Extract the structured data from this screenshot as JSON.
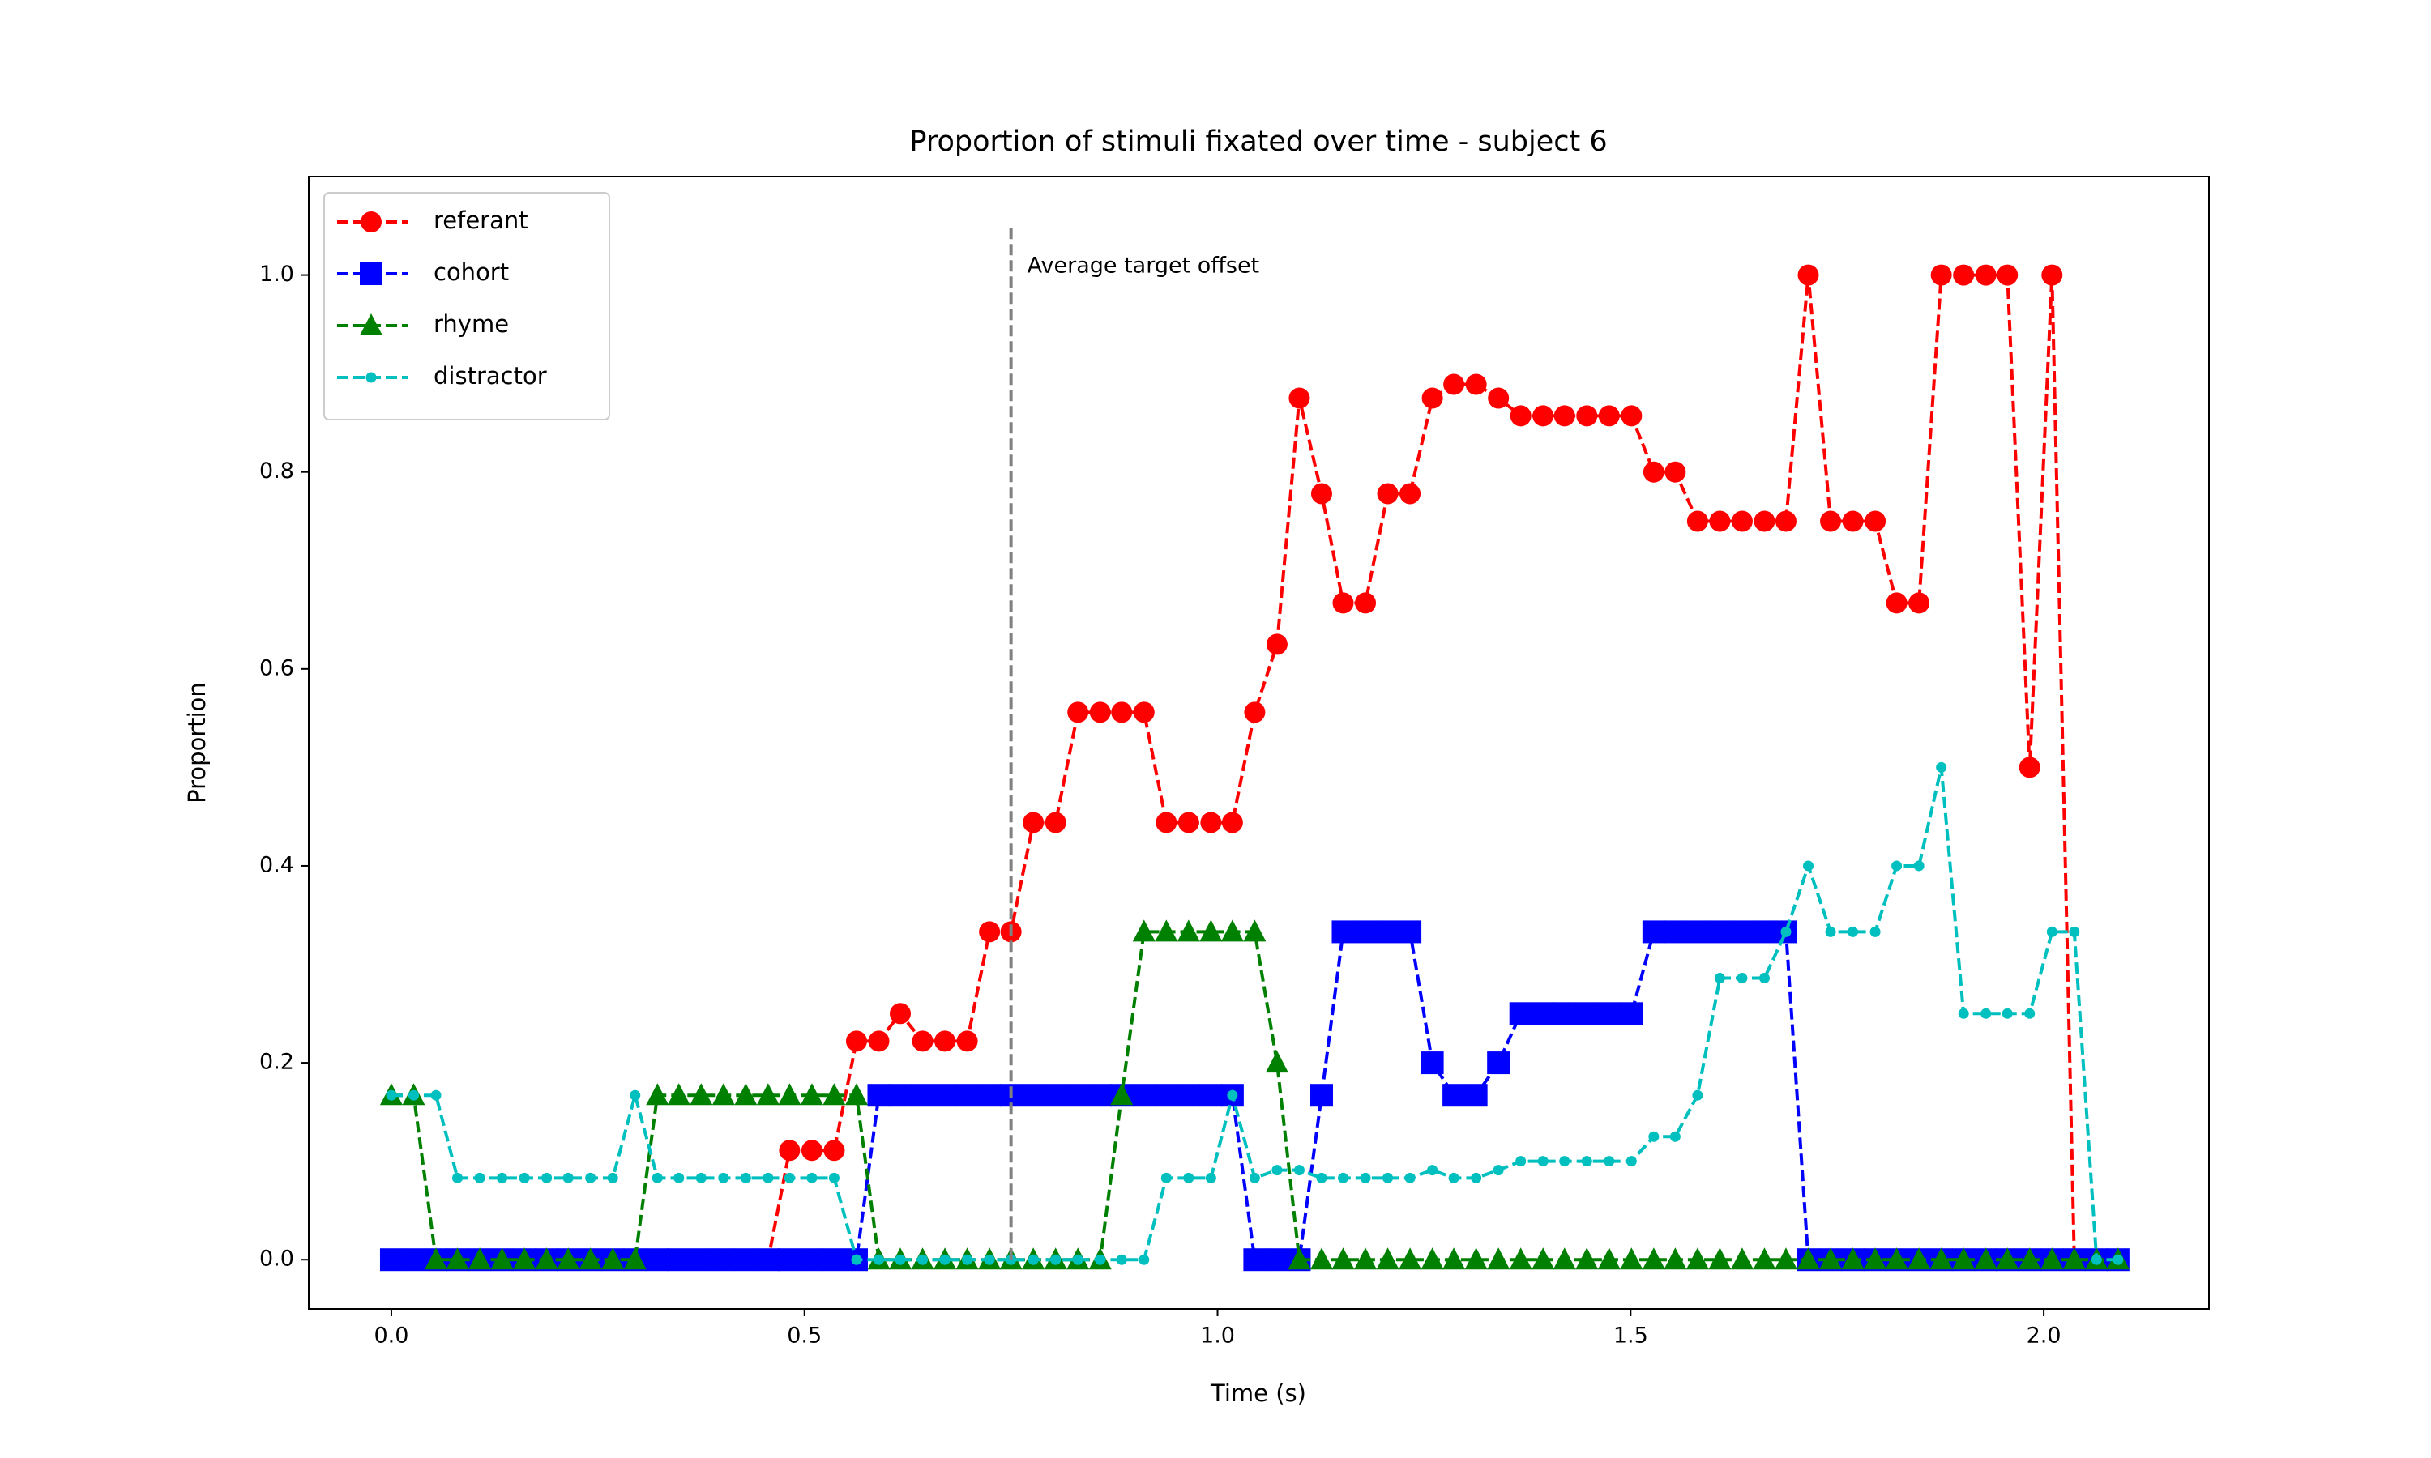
{
  "chart_data": {
    "type": "line",
    "title": "Proportion of stimuli fixated over time - subject 6",
    "xlabel": "Time (s)",
    "ylabel": "Proportion",
    "x": [
      0,
      0.027,
      0.054,
      0.08,
      0.107,
      0.134,
      0.161,
      0.188,
      0.214,
      0.241,
      0.268,
      0.295,
      0.322,
      0.348,
      0.375,
      0.402,
      0.429,
      0.456,
      0.482,
      0.509,
      0.536,
      0.563,
      0.59,
      0.616,
      0.643,
      0.67,
      0.697,
      0.724,
      0.75,
      0.777,
      0.804,
      0.831,
      0.858,
      0.884,
      0.911,
      0.938,
      0.965,
      0.992,
      1.018,
      1.045,
      1.072,
      1.099,
      1.126,
      1.152,
      1.179,
      1.206,
      1.233,
      1.26,
      1.286,
      1.313,
      1.34,
      1.367,
      1.394,
      1.42,
      1.447,
      1.474,
      1.501,
      1.528,
      1.554,
      1.581,
      1.608,
      1.635,
      1.662,
      1.688,
      1.715,
      1.742,
      1.769,
      1.796,
      1.822,
      1.849,
      1.876,
      1.903,
      1.93,
      1.956,
      1.983,
      2.01,
      2.037,
      2.064,
      2.09
    ],
    "series": [
      {
        "name": "referant",
        "color": "#ff0000",
        "marker": "o",
        "values": [
          0,
          0,
          0,
          0,
          0,
          0,
          0,
          0,
          0,
          0,
          0,
          0,
          0,
          0,
          0,
          0,
          0,
          0,
          0.111,
          0.111,
          0.111,
          0.222,
          0.222,
          0.25,
          0.222,
          0.222,
          0.222,
          0.333,
          0.333,
          0.444,
          0.444,
          0.556,
          0.556,
          0.556,
          0.556,
          0.444,
          0.444,
          0.444,
          0.444,
          0.556,
          0.625,
          0.875,
          0.778,
          0.667,
          0.667,
          0.778,
          0.778,
          0.875,
          0.889,
          0.889,
          0.875,
          0.857,
          0.857,
          0.857,
          0.857,
          0.857,
          0.857,
          0.8,
          0.8,
          0.75,
          0.75,
          0.75,
          0.75,
          0.75,
          1,
          0.75,
          0.75,
          0.75,
          0.667,
          0.667,
          1,
          1,
          1,
          1,
          0.5,
          1,
          0,
          0,
          0
        ]
      },
      {
        "name": "cohort",
        "color": "#0000ff",
        "marker": "s",
        "values": [
          0,
          0,
          0,
          0,
          0,
          0,
          0,
          0,
          0,
          0,
          0,
          0,
          0,
          0,
          0,
          0,
          0,
          0,
          0,
          0,
          0,
          0,
          0.167,
          0.167,
          0.167,
          0.167,
          0.167,
          0.167,
          0.167,
          0.167,
          0.167,
          0.167,
          0.167,
          0.167,
          0.167,
          0.167,
          0.167,
          0.167,
          0.167,
          0,
          0,
          0,
          0.167,
          0.333,
          0.333,
          0.333,
          0.333,
          0.2,
          0.167,
          0.167,
          0.2,
          0.25,
          0.25,
          0.25,
          0.25,
          0.25,
          0.25,
          0.333,
          0.333,
          0.333,
          0.333,
          0.333,
          0.333,
          0.333,
          0,
          0,
          0,
          0,
          0,
          0,
          0,
          0,
          0,
          0,
          0,
          0,
          0,
          0,
          0
        ]
      },
      {
        "name": "rhyme",
        "color": "#008000",
        "marker": "^",
        "values": [
          0.167,
          0.167,
          0,
          0,
          0,
          0,
          0,
          0,
          0,
          0,
          0,
          0,
          0.167,
          0.167,
          0.167,
          0.167,
          0.167,
          0.167,
          0.167,
          0.167,
          0.167,
          0.167,
          0,
          0,
          0,
          0,
          0,
          0,
          0,
          0,
          0,
          0,
          0,
          0.167,
          0.333,
          0.333,
          0.333,
          0.333,
          0.333,
          0.333,
          0.2,
          0,
          0,
          0,
          0,
          0,
          0,
          0,
          0,
          0,
          0,
          0,
          0,
          0,
          0,
          0,
          0,
          0,
          0,
          0,
          0,
          0,
          0,
          0,
          0,
          0,
          0,
          0,
          0,
          0,
          0,
          0,
          0,
          0,
          0,
          0,
          0,
          0,
          0
        ]
      },
      {
        "name": "distractor",
        "color": "#00bfbf",
        "marker": ".",
        "values": [
          0.167,
          0.167,
          0.167,
          0.083,
          0.083,
          0.083,
          0.083,
          0.083,
          0.083,
          0.083,
          0.083,
          0.167,
          0.083,
          0.083,
          0.083,
          0.083,
          0.083,
          0.083,
          0.083,
          0.083,
          0.083,
          0,
          0,
          0,
          0,
          0,
          0,
          0,
          0,
          0,
          0,
          0,
          0,
          0,
          0,
          0.083,
          0.083,
          0.083,
          0.167,
          0.083,
          0.091,
          0.091,
          0.083,
          0.083,
          0.083,
          0.083,
          0.083,
          0.091,
          0.083,
          0.083,
          0.091,
          0.1,
          0.1,
          0.1,
          0.1,
          0.1,
          0.1,
          0.125,
          0.125,
          0.167,
          0.286,
          0.286,
          0.286,
          0.333,
          0.4,
          0.333,
          0.333,
          0.333,
          0.4,
          0.4,
          0.5,
          0.25,
          0.25,
          0.25,
          0.25,
          0.333,
          0.333,
          0,
          0
        ]
      }
    ],
    "vline": {
      "x": 0.75,
      "ylim": [
        0,
        1.05
      ],
      "color": "#808080",
      "text": "Average target offset"
    },
    "xlim": [
      -0.1,
      2.2
    ],
    "ylim": [
      -0.05,
      1.1
    ],
    "xticks": [
      {
        "value": 0,
        "label": "0.0"
      },
      {
        "value": 0.5,
        "label": "0.5"
      },
      {
        "value": 1,
        "label": "1.0"
      },
      {
        "value": 1.5,
        "label": "1.5"
      },
      {
        "value": 2,
        "label": "2.0"
      }
    ],
    "yticks": [
      {
        "value": 0,
        "label": "0.0"
      },
      {
        "value": 0.2,
        "label": "0.2"
      },
      {
        "value": 0.4,
        "label": "0.4"
      },
      {
        "value": 0.6,
        "label": "0.6"
      },
      {
        "value": 0.8,
        "label": "0.8"
      },
      {
        "value": 1,
        "label": "1.0"
      }
    ],
    "grid": false,
    "legend": "upper left"
  }
}
